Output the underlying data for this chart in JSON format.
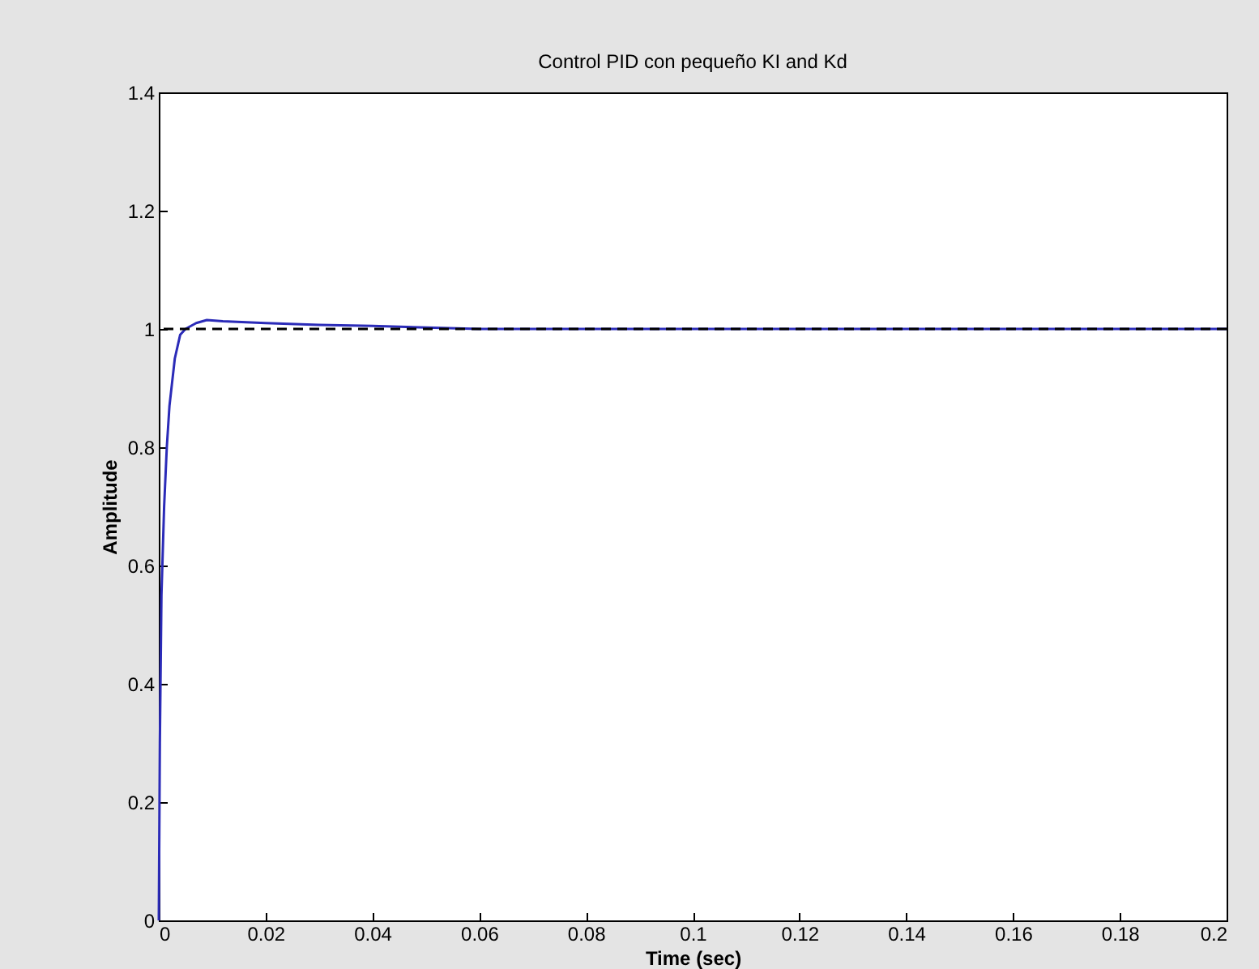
{
  "chart_data": {
    "type": "line",
    "title": "Control PID con pequeño KI and Kd",
    "xlabel": "Time (sec)",
    "ylabel": "Amplitude",
    "x": [
      0,
      0.0002,
      0.0005,
      0.001,
      0.0015,
      0.002,
      0.003,
      0.004,
      0.005,
      0.007,
      0.009,
      0.012,
      0.02,
      0.03,
      0.04,
      0.06,
      0.1,
      0.15,
      0.2
    ],
    "series": [
      {
        "color": "#2b2bb8",
        "values": [
          0,
          0.3,
          0.55,
          0.7,
          0.8,
          0.87,
          0.95,
          0.99,
          1.0,
          1.01,
          1.015,
          1.013,
          1.01,
          1.007,
          1.005,
          1.0,
          1.0,
          1.0,
          1.0
        ]
      }
    ],
    "ref_lines": [
      {
        "axis": "y",
        "value": 1,
        "color": "#000000",
        "line_style": "dashed"
      }
    ],
    "xlim": [
      0,
      0.2
    ],
    "xticks": [
      0,
      0.02,
      0.04,
      0.06,
      0.08,
      0.1,
      0.12,
      0.14,
      0.16,
      0.18,
      0.2
    ],
    "ylim": [
      0,
      1.4
    ],
    "yticks": [
      0,
      0.2,
      0.4,
      0.6,
      0.8,
      1,
      1.2,
      1.4
    ],
    "grid": false,
    "line_style": "solid",
    "marker": "none"
  }
}
